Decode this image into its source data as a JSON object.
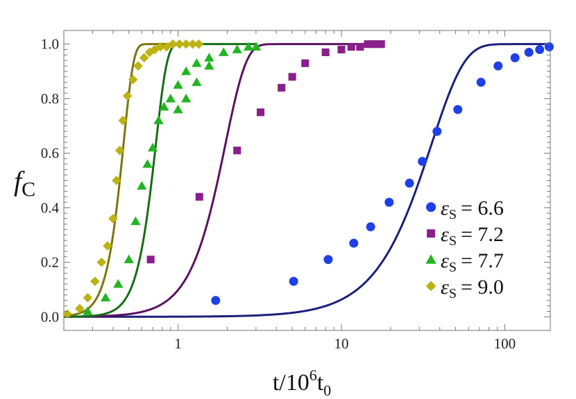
{
  "chart_data": {
    "type": "scatter",
    "title": "",
    "xlabel": "t/10^6t_0",
    "xlabel_parts": {
      "base": "t/10",
      "exp": "6",
      "unit": "t",
      "sub": "0"
    },
    "ylabel": "f_C",
    "ylabel_parts": {
      "base": "f",
      "sub": "C"
    },
    "x_scale": "log",
    "xlim": [
      0.2,
      190
    ],
    "ylim": [
      -0.05,
      1.05
    ],
    "x_ticks": [
      {
        "value": 1,
        "label": "1"
      },
      {
        "value": 10,
        "label": "10"
      },
      {
        "value": 100,
        "label": "100"
      }
    ],
    "y_ticks": [
      {
        "value": 0.0,
        "label": "0.0"
      },
      {
        "value": 0.2,
        "label": "0.2"
      },
      {
        "value": 0.4,
        "label": "0.4"
      },
      {
        "value": 0.6,
        "label": "0.6"
      },
      {
        "value": 0.8,
        "label": "0.8"
      },
      {
        "value": 1.0,
        "label": "1.0"
      }
    ],
    "legend_position": "bottom-right",
    "series": [
      {
        "name": "εS = 6.6",
        "legend_symbol": "ε",
        "legend_sub": "S",
        "legend_value": "= 6.6",
        "marker": "circle",
        "color": "#1f3fe8",
        "fit_color": "#1a1f7a",
        "fit": {
          "t0": 30,
          "k": 2.15
        },
        "x": [
          1.7,
          5.1,
          8.3,
          11.9,
          15.1,
          19.6,
          26.1,
          31.3,
          38.5,
          51.6,
          71.5,
          91.0,
          115.5,
          140.5,
          163.5,
          187.0
        ],
        "y": [
          0.06,
          0.13,
          0.21,
          0.27,
          0.33,
          0.42,
          0.49,
          0.57,
          0.68,
          0.76,
          0.86,
          0.92,
          0.95,
          0.97,
          0.98,
          0.99
        ]
      },
      {
        "name": "εS = 7.2",
        "legend_symbol": "ε",
        "legend_sub": "S",
        "legend_value": "= 7.2",
        "marker": "square",
        "color": "#8a1f8c",
        "fit_color": "#5a1260",
        "fit": {
          "t0": 1.75,
          "k": 3.4
        },
        "x": [
          0.68,
          1.35,
          2.3,
          3.2,
          4.3,
          5.0,
          6.0,
          8.0,
          10.0,
          11.5,
          13.0,
          14.5,
          15.5,
          16.5,
          17.5
        ],
        "y": [
          0.21,
          0.44,
          0.61,
          0.75,
          0.84,
          0.88,
          0.93,
          0.97,
          0.98,
          0.99,
          0.99,
          1.0,
          1.0,
          1.0,
          1.0
        ]
      },
      {
        "name": "εS = 7.7",
        "legend_symbol": "ε",
        "legend_sub": "S",
        "legend_value": "= 7.7",
        "marker": "triangle",
        "color": "#22b422",
        "fit_color": "#146e14",
        "fit": {
          "t0": 0.69,
          "k": 6.3
        },
        "x": [
          0.28,
          0.36,
          0.43,
          0.5,
          0.55,
          0.6,
          0.65,
          0.7,
          0.76,
          0.82,
          0.9,
          1.0,
          1.12,
          1.3,
          1.55,
          1.9,
          2.3,
          2.7,
          3.0
        ],
        "y": [
          0.02,
          0.07,
          0.12,
          0.21,
          0.35,
          0.48,
          0.56,
          0.62,
          0.72,
          0.77,
          0.8,
          0.85,
          0.9,
          0.93,
          0.95,
          0.97,
          0.98,
          0.99,
          0.99
        ],
        "extra": [
          {
            "x": 1.0,
            "y": 0.76
          },
          {
            "x": 1.12,
            "y": 0.8
          },
          {
            "x": 1.3,
            "y": 0.86
          },
          {
            "x": 1.55,
            "y": 0.92
          }
        ]
      },
      {
        "name": "εS = 9.0",
        "legend_symbol": "ε",
        "legend_sub": "S",
        "legend_value": "= 9.0",
        "marker": "diamond",
        "color": "#bdb214",
        "fit_color": "#7b750d",
        "fit": {
          "t0": 0.44,
          "k": 7.0
        },
        "x": [
          0.21,
          0.25,
          0.28,
          0.31,
          0.34,
          0.37,
          0.4,
          0.42,
          0.44,
          0.46,
          0.49,
          0.53,
          0.57,
          0.62,
          0.67,
          0.72,
          0.78,
          0.85,
          0.93,
          1.02,
          1.12,
          1.23,
          1.34
        ],
        "y": [
          0.01,
          0.03,
          0.07,
          0.13,
          0.2,
          0.26,
          0.36,
          0.5,
          0.61,
          0.72,
          0.81,
          0.87,
          0.92,
          0.95,
          0.97,
          0.98,
          0.99,
          0.99,
          1.0,
          1.0,
          1.0,
          1.0,
          1.0
        ]
      }
    ]
  }
}
